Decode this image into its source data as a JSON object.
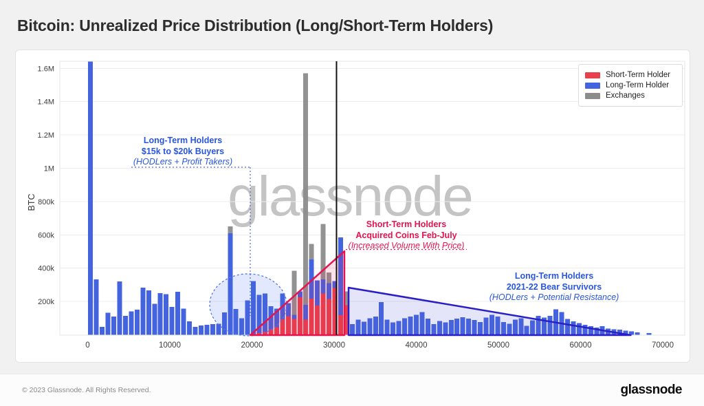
{
  "header": {
    "title": "Bitcoin: Unrealized Price Distribution (Long/Short-Term Holders)"
  },
  "watermark": "glassnode",
  "legend": {
    "items": [
      {
        "label": "Short-Term Holder",
        "color": "#E8414D"
      },
      {
        "label": "Long-Term Holder",
        "color": "#4463DE"
      },
      {
        "label": "Exchanges",
        "color": "#8C8C8C"
      }
    ]
  },
  "annotations": {
    "ltm_buyers": {
      "line1": "Long-Term Holders",
      "line2": "$15k to $20k Buyers",
      "line3": "(HODLers + Profit Takers)",
      "color": "#2856E0"
    },
    "stm_acquired": {
      "line1": "Short-Term Holders",
      "line2": "Acquired Coins Feb-July",
      "line3": "(Increased Volume With Price)",
      "color": "#E6134F"
    },
    "bear_survivors": {
      "line1": "Long-Term Holders",
      "line2": "2021-22 Bear Survivors",
      "line3": "(HODLers + Potential Resistance)",
      "color": "#2856E0"
    }
  },
  "footer": {
    "copyright": "© 2023 Glassnode. All Rights Reserved.",
    "logo": "glassnode"
  },
  "chart_data": {
    "type": "bar",
    "stacked": true,
    "ylabel": "BTC",
    "xlabel": "",
    "unit_note": "bars = [price_usd, short_term_kBTC, long_term_kBTC, exchanges_kBTC]; values in thousands of BTC",
    "ylim_k": [
      0,
      1650
    ],
    "xlim": [
      0,
      70000
    ],
    "grid": "horizontal",
    "legend_position": "top-right",
    "colors": {
      "short_term": "#E8414D",
      "long_term": "#4463DE",
      "exchanges": "#8C8C8C"
    },
    "y_ticks": [
      {
        "v": 200,
        "label": "200k"
      },
      {
        "v": 400,
        "label": "400k"
      },
      {
        "v": 600,
        "label": "600k"
      },
      {
        "v": 800,
        "label": "800k"
      },
      {
        "v": 1000,
        "label": "1M"
      },
      {
        "v": 1200,
        "label": "1.2M"
      },
      {
        "v": 1400,
        "label": "1.4M"
      },
      {
        "v": 1600,
        "label": "1.6M"
      }
    ],
    "x_ticks": [
      {
        "v": 0,
        "label": "0"
      },
      {
        "v": 10000,
        "label": "10000"
      },
      {
        "v": 20000,
        "label": "20000"
      },
      {
        "v": 30000,
        "label": "30000"
      },
      {
        "v": 40000,
        "label": "40000"
      },
      {
        "v": 50000,
        "label": "50000"
      },
      {
        "v": 60000,
        "label": "60000"
      },
      {
        "v": 70000,
        "label": "70000"
      }
    ],
    "bars": [
      [
        0,
        0,
        1640,
        0
      ],
      [
        708,
        0,
        332,
        0
      ],
      [
        1416,
        0,
        48,
        0
      ],
      [
        2124,
        0,
        132,
        0
      ],
      [
        2832,
        0,
        110,
        0
      ],
      [
        3540,
        0,
        320,
        0
      ],
      [
        4248,
        0,
        114,
        0
      ],
      [
        4956,
        0,
        140,
        0
      ],
      [
        5664,
        0,
        150,
        0
      ],
      [
        6372,
        0,
        284,
        0
      ],
      [
        7080,
        0,
        267,
        0
      ],
      [
        7788,
        0,
        186,
        0
      ],
      [
        8496,
        0,
        249,
        0
      ],
      [
        9204,
        0,
        243,
        0
      ],
      [
        9912,
        0,
        168,
        0
      ],
      [
        10620,
        0,
        259,
        0
      ],
      [
        11328,
        0,
        158,
        0
      ],
      [
        12036,
        0,
        80,
        0
      ],
      [
        12744,
        0,
        47,
        0
      ],
      [
        13452,
        0,
        55,
        0
      ],
      [
        14160,
        0,
        60,
        0
      ],
      [
        14868,
        0,
        64,
        0
      ],
      [
        15576,
        0,
        67,
        0
      ],
      [
        16284,
        0,
        134,
        0
      ],
      [
        16992,
        0,
        610,
        40
      ],
      [
        17700,
        0,
        154,
        0
      ],
      [
        18408,
        0,
        100,
        0
      ],
      [
        19116,
        0,
        207,
        0
      ],
      [
        19824,
        4,
        318,
        0
      ],
      [
        20532,
        10,
        230,
        0
      ],
      [
        21240,
        18,
        230,
        0
      ],
      [
        21948,
        30,
        141,
        0
      ],
      [
        22656,
        45,
        112,
        0
      ],
      [
        23364,
        93,
        155,
        0
      ],
      [
        24072,
        111,
        79,
        0
      ],
      [
        24780,
        95,
        25,
        265
      ],
      [
        25488,
        225,
        35,
        0
      ],
      [
        26196,
        90,
        90,
        1390
      ],
      [
        26904,
        217,
        235,
        93
      ],
      [
        27612,
        176,
        150,
        0
      ],
      [
        28320,
        247,
        85,
        333
      ],
      [
        29028,
        214,
        96,
        64
      ],
      [
        29736,
        280,
        43,
        0
      ],
      [
        30444,
        118,
        467,
        0
      ],
      [
        31152,
        178,
        0,
        82
      ],
      [
        31860,
        0,
        64,
        0
      ],
      [
        32568,
        0,
        90,
        0
      ],
      [
        33276,
        0,
        79,
        0
      ],
      [
        33984,
        0,
        100,
        0
      ],
      [
        34692,
        0,
        110,
        0
      ],
      [
        35400,
        0,
        196,
        0
      ],
      [
        36108,
        0,
        90,
        0
      ],
      [
        36816,
        0,
        74,
        0
      ],
      [
        37524,
        0,
        83,
        0
      ],
      [
        38232,
        0,
        100,
        0
      ],
      [
        38940,
        0,
        110,
        0
      ],
      [
        39648,
        0,
        120,
        0
      ],
      [
        40356,
        0,
        137,
        0
      ],
      [
        41064,
        0,
        97,
        0
      ],
      [
        41772,
        0,
        64,
        0
      ],
      [
        42480,
        0,
        83,
        0
      ],
      [
        43188,
        0,
        74,
        0
      ],
      [
        43896,
        0,
        88,
        0
      ],
      [
        44604,
        0,
        97,
        0
      ],
      [
        45312,
        0,
        106,
        0
      ],
      [
        46020,
        0,
        97,
        0
      ],
      [
        46728,
        0,
        88,
        0
      ],
      [
        47436,
        0,
        77,
        0
      ],
      [
        48144,
        0,
        103,
        0
      ],
      [
        48852,
        0,
        120,
        0
      ],
      [
        49560,
        0,
        110,
        0
      ],
      [
        50268,
        0,
        77,
        0
      ],
      [
        50976,
        0,
        66,
        0
      ],
      [
        51684,
        0,
        90,
        0
      ],
      [
        52392,
        0,
        100,
        0
      ],
      [
        53100,
        0,
        54,
        0
      ],
      [
        53808,
        0,
        87,
        0
      ],
      [
        54516,
        0,
        113,
        0
      ],
      [
        55224,
        0,
        104,
        0
      ],
      [
        55932,
        0,
        113,
        0
      ],
      [
        56640,
        0,
        153,
        0
      ],
      [
        57348,
        0,
        136,
        0
      ],
      [
        58056,
        0,
        96,
        0
      ],
      [
        58764,
        0,
        80,
        0
      ],
      [
        59472,
        0,
        70,
        0
      ],
      [
        60180,
        0,
        60,
        0
      ],
      [
        60888,
        0,
        51,
        0
      ],
      [
        61596,
        0,
        43,
        0
      ],
      [
        62304,
        0,
        51,
        0
      ],
      [
        63012,
        0,
        38,
        0
      ],
      [
        63720,
        0,
        34,
        0
      ],
      [
        64428,
        0,
        30,
        0
      ],
      [
        65136,
        0,
        24,
        0
      ],
      [
        65844,
        0,
        20,
        0
      ],
      [
        66552,
        0,
        14,
        0
      ],
      [
        67968,
        0,
        10,
        0
      ]
    ],
    "overlays": {
      "current_price_line": {
        "price": 30290,
        "color": "#111111"
      },
      "short_term_triangle": {
        "from_price": 19800,
        "peak_price": 31250,
        "peak_btc_k": 502,
        "stroke": "#E6134F",
        "fill": "rgba(233,25,90,0.13)"
      },
      "bear_survivor_polygon": {
        "from_price": 31760,
        "from_btc_k": 283,
        "to_price": 66100,
        "stroke": "#2A1FC4",
        "fill": "rgba(90,95,220,0.16)"
      },
      "highlight_ellipse": {
        "center_price": 19540,
        "price_radius": 4686,
        "center_btc_k": 180,
        "btc_k_radius": 186,
        "stroke": "#5577E8",
        "fill": "rgba(110,140,245,0.20)"
      }
    }
  }
}
